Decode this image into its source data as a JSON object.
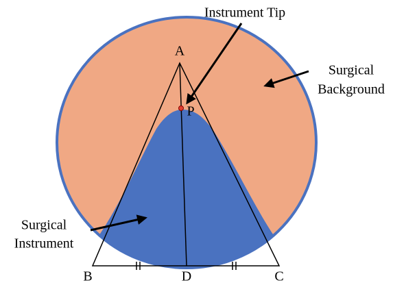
{
  "labels": {
    "instrument_tip": "Instrument Tip",
    "surgical_background": [
      "Surgical",
      "Background"
    ],
    "surgical_instrument": [
      "Surgical",
      "Instrument"
    ],
    "vertices": {
      "A": "A",
      "B": "B",
      "C": "C",
      "D": "D",
      "P": "P"
    }
  }
}
